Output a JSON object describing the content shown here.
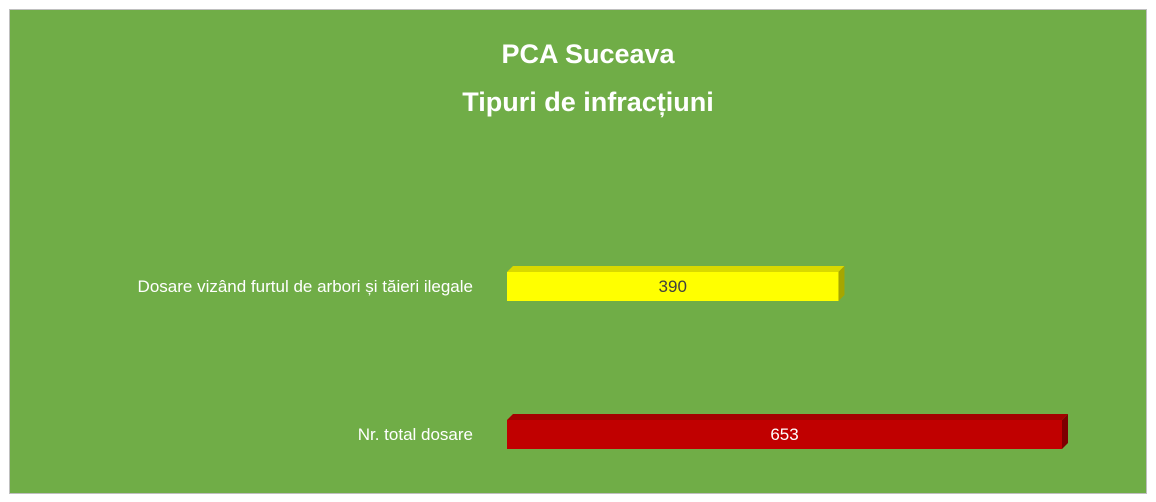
{
  "chart_data": {
    "type": "bar3d_horizontal",
    "title": "PCA Suceava",
    "subtitle": "Tipuri de infracțiuni",
    "categories": [
      "Dosare vizând furtul de arbori și tăieri ilegale",
      "Nr. total dosare"
    ],
    "values": [
      390,
      653
    ],
    "colors": [
      "#ffff00",
      "#c00000"
    ],
    "background": "#70ad47"
  }
}
